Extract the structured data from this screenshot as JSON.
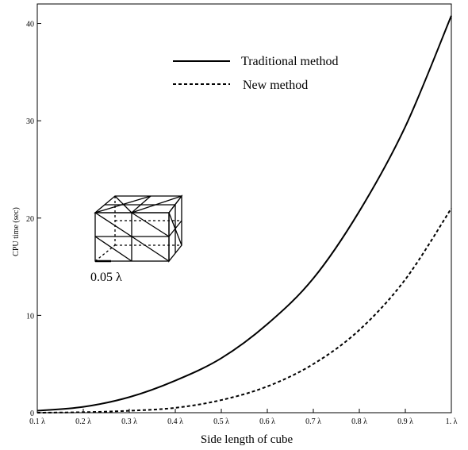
{
  "chart_data": {
    "type": "line",
    "title": "",
    "xlabel": "Side length of cube",
    "ylabel": "CPU time (sec)",
    "x": [
      0.1,
      0.2,
      0.3,
      0.4,
      0.5,
      0.6,
      0.7,
      0.8,
      0.9,
      1.0
    ],
    "x_tick_labels": [
      "0.1 λ",
      "0.2 λ",
      "0.3 λ",
      "0.4 λ",
      "0.5 λ",
      "0.6 λ",
      "0.7 λ",
      "0.8 λ",
      "0.9 λ",
      "1. λ"
    ],
    "xlim": [
      0.1,
      1.0
    ],
    "ylim": [
      0,
      42
    ],
    "y_ticks": [
      0,
      10,
      20,
      30,
      40
    ],
    "y_tick_labels": [
      "0",
      "10",
      "20",
      "30",
      "40"
    ],
    "grid": false,
    "legend_position": "top-center",
    "series": [
      {
        "name": "Traditional method",
        "style": "solid",
        "color": "#000000",
        "values": [
          0.2,
          0.6,
          1.6,
          3.3,
          5.6,
          9.1,
          13.8,
          20.7,
          29.4,
          40.8
        ]
      },
      {
        "name": "New method",
        "style": "dashed",
        "color": "#000000",
        "values": [
          0.0,
          0.05,
          0.2,
          0.5,
          1.3,
          2.7,
          5.0,
          8.5,
          13.7,
          21.0
        ]
      }
    ],
    "annotations": [
      {
        "text": "0.05 λ",
        "icon": "wireframe-cube-mesh-icon"
      }
    ]
  }
}
